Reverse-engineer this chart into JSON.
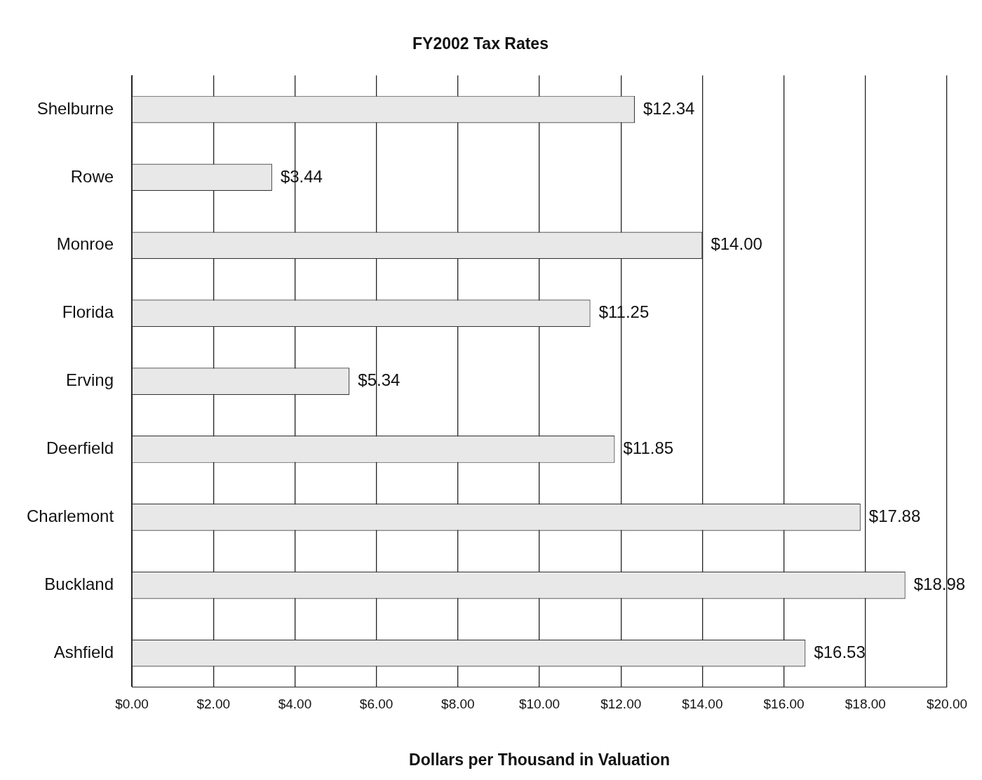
{
  "chart_data": {
    "type": "bar",
    "orientation": "horizontal",
    "title": "FY2002 Tax Rates",
    "xlabel": "Dollars per Thousand in Valuation",
    "categories": [
      "Shelburne",
      "Rowe",
      "Monroe",
      "Florida",
      "Erving",
      "Deerfield",
      "Charlemont",
      "Buckland",
      "Ashfield"
    ],
    "values": [
      12.34,
      3.44,
      14.0,
      11.25,
      5.34,
      11.85,
      17.88,
      18.98,
      16.53
    ],
    "value_labels": [
      "$12.34",
      "$3.44",
      "$14.00",
      "$11.25",
      "$5.34",
      "$11.85",
      "$17.88",
      "$18.98",
      "$16.53"
    ],
    "color": "#e8e8e8",
    "xlim": [
      0,
      20
    ],
    "xticks": [
      {
        "value": 0,
        "label": "$0.00"
      },
      {
        "value": 2,
        "label": "$2.00"
      },
      {
        "value": 4,
        "label": "$4.00"
      },
      {
        "value": 6,
        "label": "$6.00"
      },
      {
        "value": 8,
        "label": "$8.00"
      },
      {
        "value": 10,
        "label": "$10.00"
      },
      {
        "value": 12,
        "label": "$12.00"
      },
      {
        "value": 14,
        "label": "$14.00"
      },
      {
        "value": 16,
        "label": "$16.00"
      },
      {
        "value": 18,
        "label": "$18.00"
      },
      {
        "value": 20,
        "label": "$20.00"
      }
    ],
    "grid": "x",
    "legend": false
  }
}
